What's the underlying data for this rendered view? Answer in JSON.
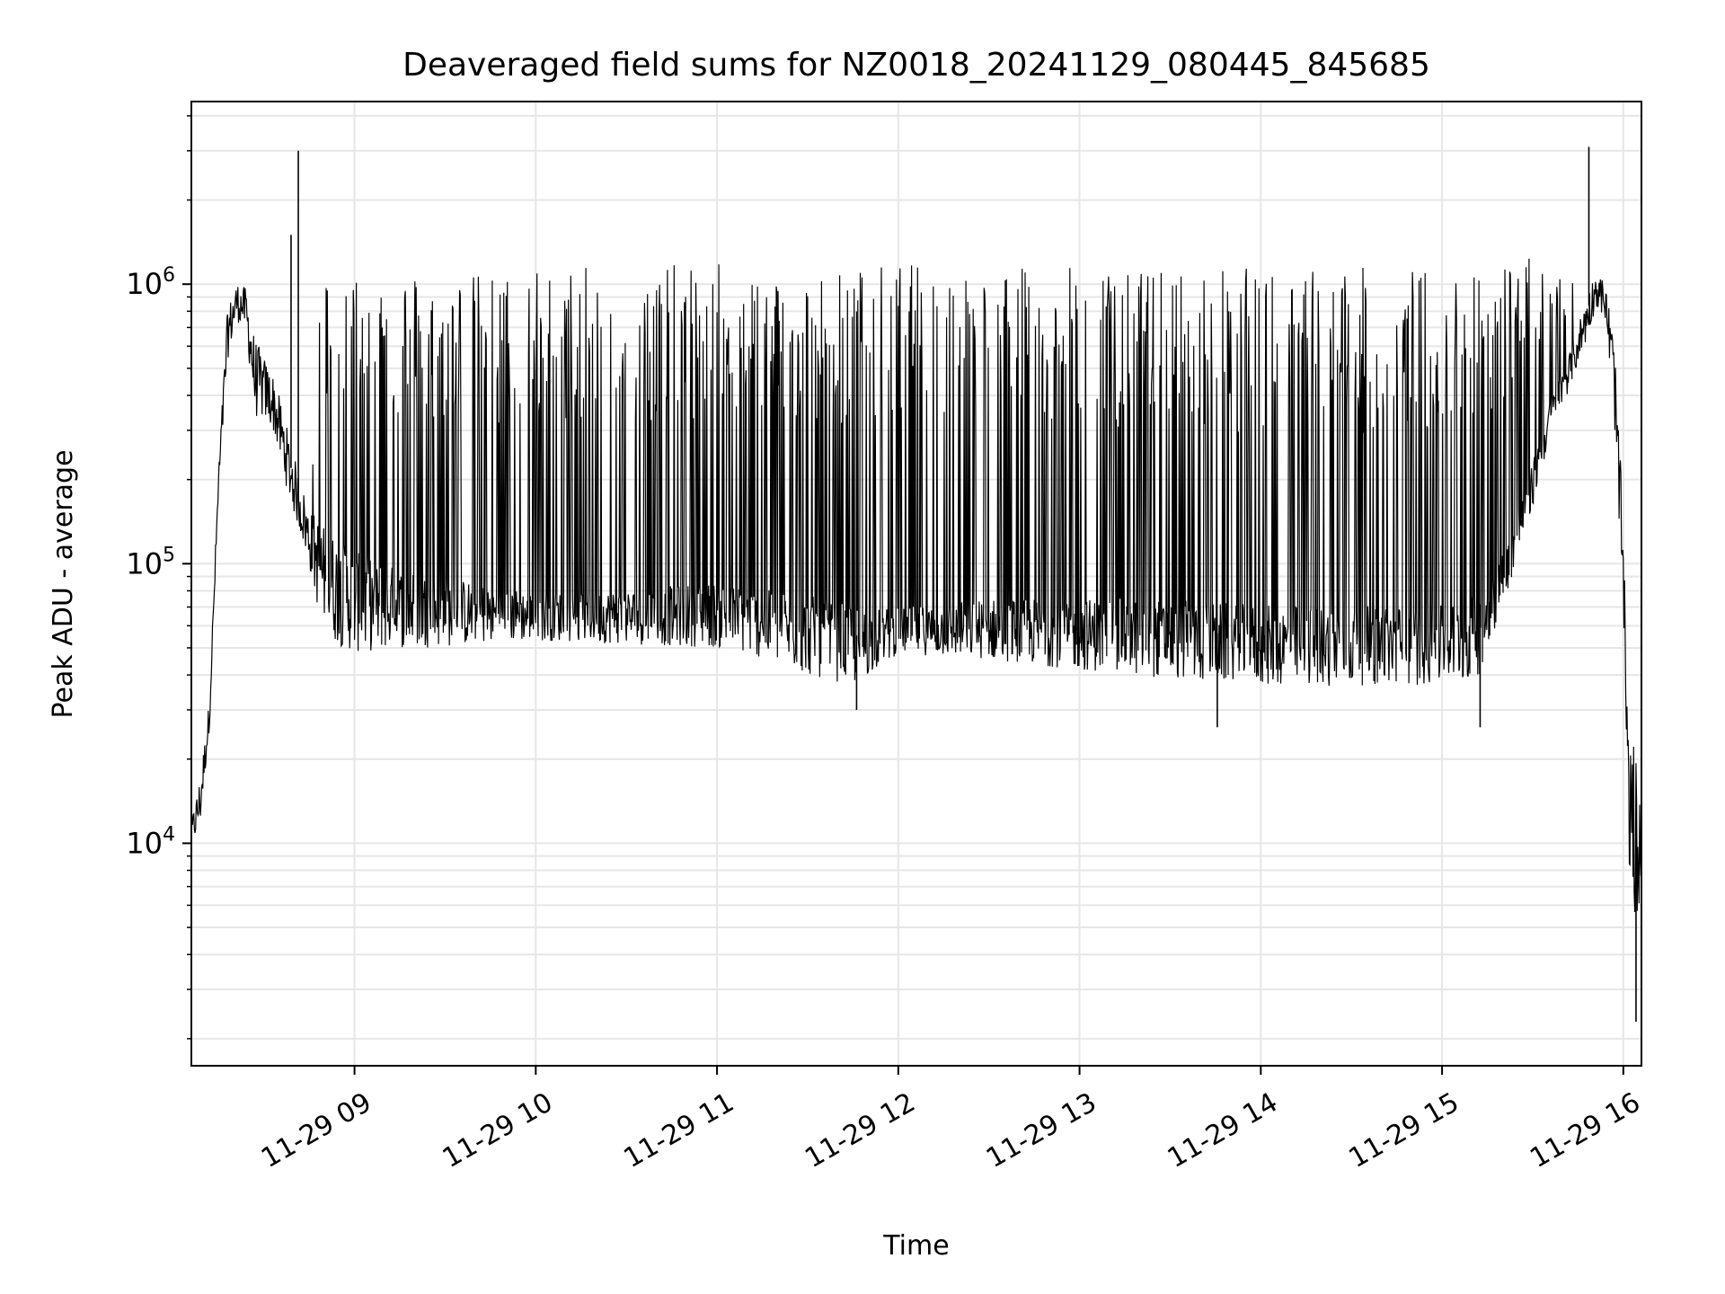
{
  "chart_data": {
    "type": "line",
    "title": "Deaveraged field sums for NZ0018_20241129_080445_845685",
    "xlabel": "Time",
    "ylabel": "Peak ADU - average",
    "yscale": "log",
    "grid": true,
    "line_color": "#000000",
    "x_ticks": [
      "11-29 09",
      "11-29 10",
      "11-29 11",
      "11-29 12",
      "11-29 13",
      "11-29 14",
      "11-29 15",
      "11-29 16"
    ],
    "x_tick_hours": [
      9,
      10,
      11,
      12,
      13,
      14,
      15,
      16
    ],
    "x_range_hours": [
      8.1,
      16.1
    ],
    "y_ticks": [
      {
        "base": "10",
        "exp": "4",
        "value": 10000
      },
      {
        "base": "10",
        "exp": "5",
        "value": 100000
      },
      {
        "base": "10",
        "exp": "6",
        "value": 1000000
      }
    ],
    "ylim": [
      1600,
      4500000
    ],
    "series": [
      {
        "x_hours": [
          8.1,
          8.15,
          8.2,
          8.25,
          8.3,
          8.35,
          8.4,
          8.45,
          8.5,
          8.55,
          8.6,
          8.65,
          8.7,
          8.75,
          8.8,
          8.85,
          8.9,
          9.0,
          9.25,
          9.5,
          9.75,
          10.0,
          10.5,
          11.0,
          11.25,
          11.5,
          11.75,
          12.0,
          12.5,
          13.0,
          13.5,
          14.0,
          14.5,
          15.0,
          15.2,
          15.35,
          15.5,
          15.6,
          15.7,
          15.8,
          15.85,
          15.9,
          15.95,
          16.0,
          16.03,
          16.06,
          16.1
        ],
        "baseline": [
          11000,
          15000,
          30000,
          200000,
          700000,
          900000,
          850000,
          500000,
          450000,
          400000,
          300000,
          220000,
          170000,
          130000,
          110000,
          95000,
          90000,
          80000,
          75000,
          72000,
          70000,
          68000,
          68000,
          70000,
          65000,
          60000,
          55000,
          60000,
          62000,
          60000,
          58000,
          55000,
          55000,
          55000,
          60000,
          100000,
          200000,
          350000,
          500000,
          800000,
          1000000,
          900000,
          500000,
          100000,
          15000,
          12000,
          10000
        ],
        "upper": [
          11000,
          15000,
          30000,
          200000,
          700000,
          900000,
          850000,
          500000,
          450000,
          400000,
          300000,
          220000,
          170000,
          130000,
          1200000,
          1150000,
          1150000,
          1200000,
          1150000,
          1100000,
          1100000,
          1150000,
          1150000,
          1200000,
          1150000,
          1100000,
          1150000,
          1200000,
          1150000,
          1150000,
          1150000,
          1150000,
          1150000,
          1150000,
          1200000,
          1250000,
          1250000,
          1200000,
          1100000,
          1100000,
          1000000,
          900000,
          500000,
          100000,
          15000,
          12000,
          10000
        ],
        "lower": [
          9000,
          11000,
          25000,
          160000,
          500000,
          700000,
          650000,
          300000,
          300000,
          280000,
          200000,
          150000,
          120000,
          90000,
          60000,
          50000,
          45000,
          42000,
          45000,
          46000,
          48000,
          50000,
          48000,
          46000,
          42000,
          36000,
          33000,
          45000,
          42000,
          38000,
          35000,
          33000,
          33000,
          33000,
          35000,
          70000,
          150000,
          280000,
          400000,
          600000,
          800000,
          700000,
          300000,
          50000,
          8000,
          3000,
          7000
        ],
        "spikes": [
          {
            "x_hour": 8.69,
            "value": 3000000
          },
          {
            "x_hour": 8.65,
            "value": 1500000
          },
          {
            "x_hour": 15.81,
            "value": 3100000
          },
          {
            "x_hour": 16.07,
            "value": 2300
          },
          {
            "x_hour": 13.76,
            "value": 26000
          },
          {
            "x_hour": 15.21,
            "value": 26000
          },
          {
            "x_hour": 11.77,
            "value": 30000
          }
        ]
      }
    ]
  }
}
